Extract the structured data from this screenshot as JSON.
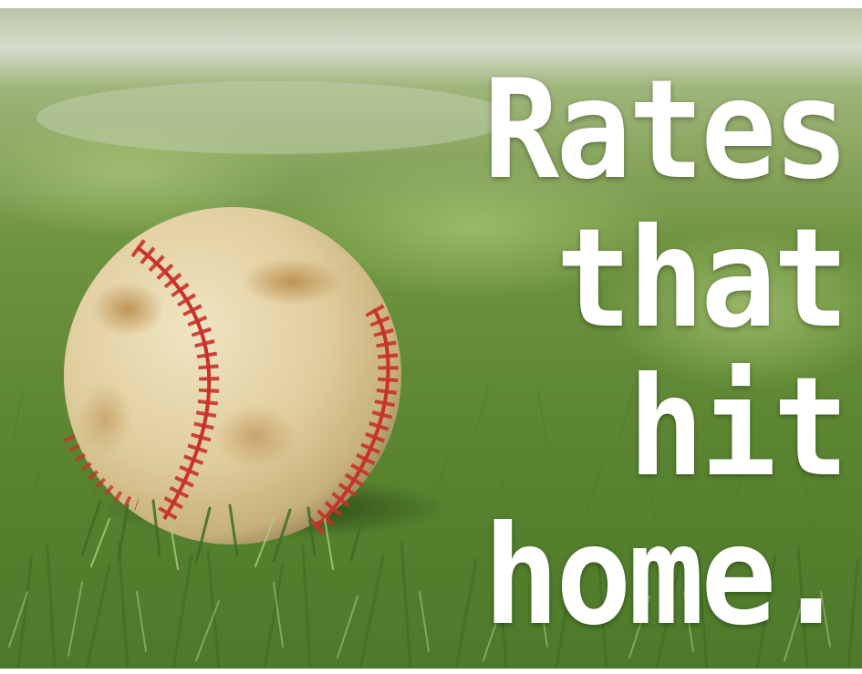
{
  "headline": {
    "line1": "Rates",
    "line2": "that",
    "line3": "hit",
    "line4": "home."
  },
  "photo": {
    "subject": "baseball-on-grass",
    "colors": {
      "grass_dark": "#3f6a24",
      "grass_mid": "#6f9a3e",
      "grass_light": "#a9c27a",
      "ball_leather": "#e3d3a6",
      "stitching": "#c8322a",
      "stain": "#b98a4a"
    }
  }
}
